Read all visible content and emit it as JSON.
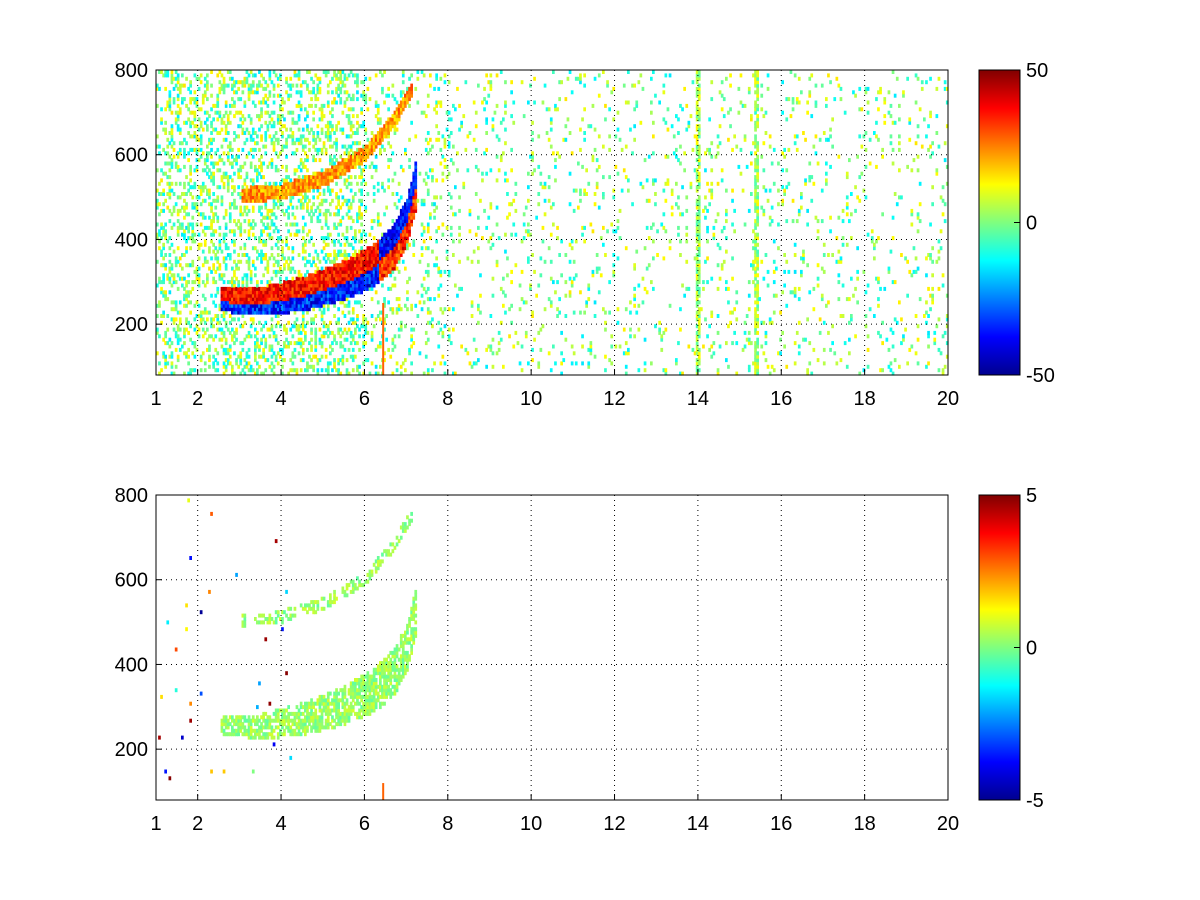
{
  "chart_data": [
    {
      "type": "heatmap",
      "title": "",
      "xlabel": "",
      "ylabel": "",
      "xlim": [
        1,
        20
      ],
      "ylim": [
        80,
        800
      ],
      "xticks": [
        1,
        2,
        4,
        6,
        8,
        10,
        12,
        14,
        16,
        18,
        20
      ],
      "yticks": [
        200,
        400,
        600,
        800
      ],
      "grid": true,
      "colormap": "jet",
      "clim": [
        -50,
        50
      ],
      "colorbar_ticks": [
        50,
        0,
        -50
      ],
      "features": {
        "lower_band": [
          [
            2.5,
            255
          ],
          [
            3.5,
            250
          ],
          [
            4.5,
            268
          ],
          [
            5.5,
            300
          ],
          [
            6.2,
            335
          ],
          [
            6.7,
            380
          ],
          [
            7.0,
            440
          ],
          [
            7.2,
            520
          ]
        ],
        "upper_band": [
          [
            3.0,
            500
          ],
          [
            4.0,
            510
          ],
          [
            5.0,
            540
          ],
          [
            6.0,
            600
          ],
          [
            6.7,
            680
          ],
          [
            7.1,
            750
          ]
        ],
        "band_value_warm": 45,
        "band_value_cold": -45,
        "spike_x": [
          6.45
        ],
        "noise_columns": [
          14.0,
          15.4
        ]
      }
    },
    {
      "type": "heatmap",
      "title": "",
      "xlabel": "",
      "ylabel": "",
      "xlim": [
        1,
        20
      ],
      "ylim": [
        80,
        800
      ],
      "xticks": [
        1,
        2,
        4,
        6,
        8,
        10,
        12,
        14,
        16,
        18,
        20
      ],
      "yticks": [
        200,
        400,
        600,
        800
      ],
      "grid": true,
      "colormap": "jet",
      "clim": [
        -5,
        5
      ],
      "colorbar_ticks": [
        5,
        0,
        -5
      ],
      "features": {
        "lower_band": [
          [
            2.5,
            255
          ],
          [
            3.5,
            250
          ],
          [
            4.5,
            268
          ],
          [
            5.5,
            300
          ],
          [
            6.2,
            335
          ],
          [
            6.7,
            380
          ],
          [
            7.0,
            440
          ],
          [
            7.2,
            520
          ]
        ],
        "upper_band": [
          [
            3.0,
            500
          ],
          [
            4.0,
            510
          ],
          [
            5.0,
            540
          ],
          [
            6.0,
            600
          ],
          [
            6.7,
            680
          ],
          [
            7.1,
            750
          ]
        ],
        "band_value": 0.6,
        "spike_x": [
          6.45
        ]
      }
    }
  ],
  "colors": {
    "axis": "#000000",
    "grid": "#000000",
    "background": "#ffffff"
  }
}
